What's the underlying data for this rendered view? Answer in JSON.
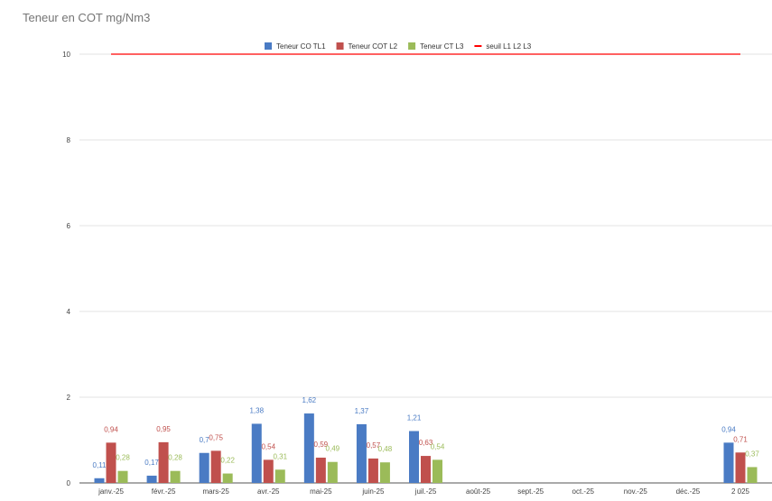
{
  "chart_data": {
    "type": "bar",
    "title": "Teneur en COT mg/Nm3",
    "xlabel": "",
    "ylabel": "",
    "ylim": [
      0,
      10
    ],
    "yticks": [
      0,
      2,
      4,
      6,
      8,
      10
    ],
    "ytick_labels": [
      "0",
      "2",
      "4",
      "6",
      "8",
      "10"
    ],
    "grid": true,
    "legend_position": "top",
    "categories": [
      "janv.-25",
      "févr.-25",
      "mars-25",
      "avr.-25",
      "mai-25",
      "juin-25",
      "juil.-25",
      "août-25",
      "sept.-25",
      "oct.-25",
      "nov.-25",
      "déc.-25",
      "2 025"
    ],
    "series": [
      {
        "name": "Teneur CO TL1",
        "color": "#4a7bc4",
        "kind": "bar",
        "values": [
          0.11,
          0.17,
          0.7,
          1.38,
          1.62,
          1.37,
          1.21,
          null,
          null,
          null,
          null,
          null,
          0.94
        ],
        "labels": [
          "0,11",
          "0,17",
          "0,7",
          "1,38",
          "1,62",
          "1,37",
          "1,21",
          "",
          "",
          "",
          "",
          "",
          "0,94"
        ]
      },
      {
        "name": "Teneur COT L2",
        "color": "#c0504d",
        "kind": "bar",
        "values": [
          0.94,
          0.95,
          0.75,
          0.54,
          0.59,
          0.57,
          0.63,
          null,
          null,
          null,
          null,
          null,
          0.71
        ],
        "labels": [
          "0,94",
          "0,95",
          "0,75",
          "0,54",
          "0,59",
          "0,57",
          "0,63",
          "",
          "",
          "",
          "",
          "",
          "0,71"
        ]
      },
      {
        "name": "Teneur CT L3",
        "color": "#9bbb59",
        "kind": "bar",
        "values": [
          0.28,
          0.28,
          0.22,
          0.31,
          0.49,
          0.48,
          0.54,
          null,
          null,
          null,
          null,
          null,
          0.37
        ],
        "labels": [
          "0,28",
          "0,28",
          "0,22",
          "0,31",
          "0,49",
          "0,48",
          "0,54",
          "",
          "",
          "",
          "",
          "",
          "0,37"
        ]
      },
      {
        "name": "seuil L1 L2 L3",
        "color": "#ff0000",
        "kind": "line",
        "values": [
          10,
          10,
          10,
          10,
          10,
          10,
          10,
          10,
          10,
          10,
          10,
          10,
          10
        ]
      }
    ]
  }
}
